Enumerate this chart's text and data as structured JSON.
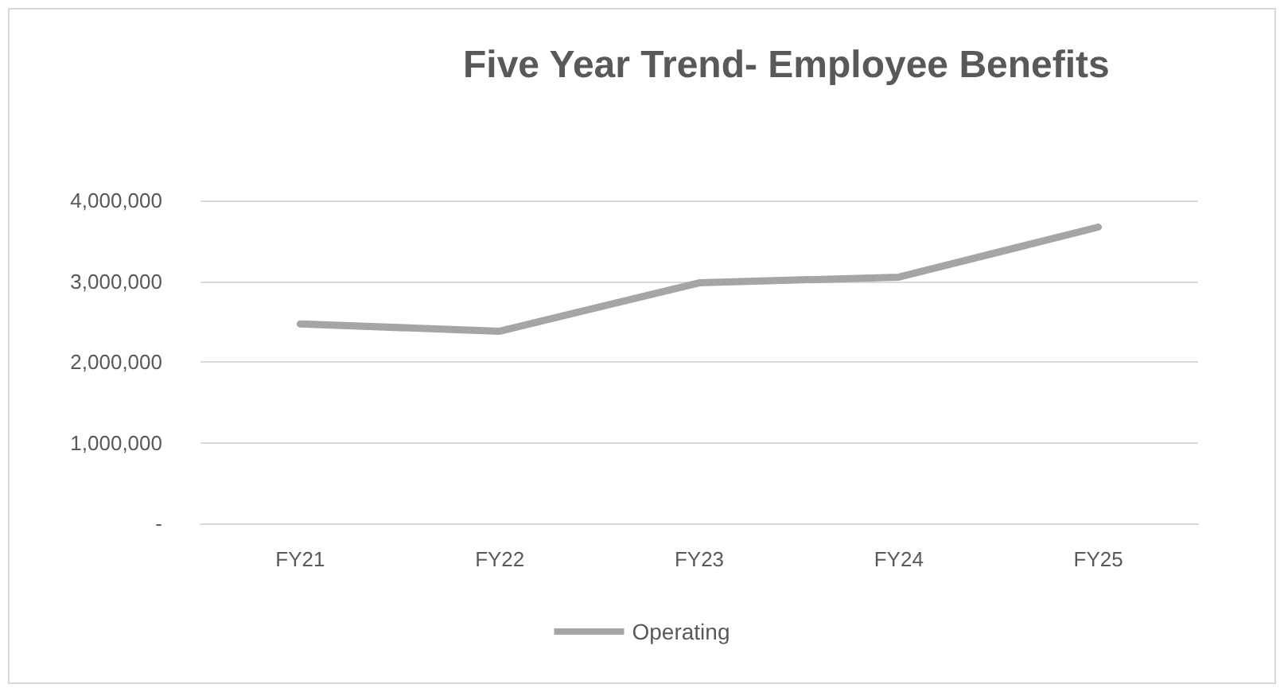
{
  "chart_data": {
    "type": "line",
    "title": "Five Year Trend- Employee Benefits",
    "categories": [
      "FY21",
      "FY22",
      "FY23",
      "FY24",
      "FY25"
    ],
    "series": [
      {
        "name": "Operating",
        "color": "#a5a5a5",
        "values": [
          2470000,
          2380000,
          2980000,
          3050000,
          3670000
        ]
      }
    ],
    "ylim": [
      0,
      4000000
    ],
    "yticks": [
      {
        "value": 0,
        "label": "-"
      },
      {
        "value": 1000000,
        "label": "1,000,000"
      },
      {
        "value": 2000000,
        "label": "2,000,000"
      },
      {
        "value": 3000000,
        "label": "3,000,000"
      },
      {
        "value": 4000000,
        "label": "4,000,000"
      }
    ],
    "grid": "y",
    "legend": "bottom",
    "marker": "none",
    "line_style": "solid"
  }
}
